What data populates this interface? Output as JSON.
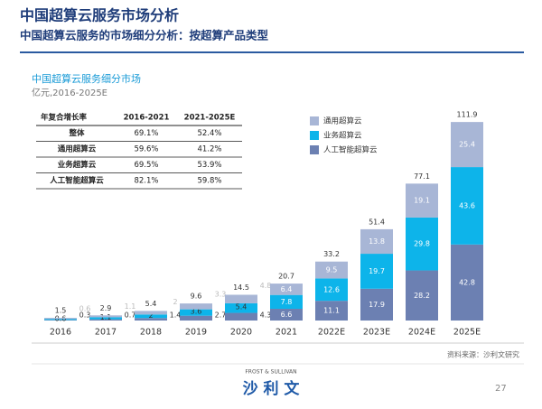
{
  "header": {
    "title": "中国超算云服务市场分析",
    "subtitle": "中国超算云服务的市场细分分析：按超算产品类型"
  },
  "table": {
    "header": [
      "年复合增长率",
      "2016-2021",
      "2021-2025E"
    ],
    "rows": [
      [
        "整体",
        "69.1%",
        "52.4%"
      ],
      [
        "通用超算云",
        "59.6%",
        "41.2%"
      ],
      [
        "业务超算云",
        "69.5%",
        "53.9%"
      ],
      [
        "人工智能超算云",
        "82.1%",
        "59.8%"
      ]
    ]
  },
  "chart_data": {
    "type": "stacked_bar",
    "title": "中国超算云服务细分市场",
    "subtitle": "亿元,2016-2025E",
    "categories": [
      "2016",
      "2017",
      "2018",
      "2019",
      "2020",
      "2021",
      "2022E",
      "2023E",
      "2024E",
      "2025E"
    ],
    "series": [
      {
        "name": "人工智能超算云",
        "color": "#6c80b2",
        "values": [
          0.3,
          0.7,
          1.4,
          2.7,
          4.3,
          6.6,
          11.1,
          17.9,
          28.2,
          42.8
        ]
      },
      {
        "name": "业务超算云",
        "color": "#0db4ea",
        "values": [
          0.6,
          1.1,
          2.0,
          3.6,
          5.4,
          7.8,
          12.6,
          19.7,
          29.8,
          43.6
        ]
      },
      {
        "name": "通用超算云",
        "color": "#a8b6d6",
        "values": [
          0.6,
          1.1,
          2.0,
          3.3,
          4.8,
          6.4,
          9.5,
          13.8,
          19.1,
          25.4
        ]
      }
    ],
    "totals": [
      1.5,
      2.9,
      5.4,
      9.6,
      14.5,
      20.7,
      33.2,
      51.4,
      77.1,
      111.9
    ],
    "ylim": [
      0,
      120
    ]
  },
  "footer": {
    "source": "资料来源：沙利文研究",
    "brand_en": "FROST & SULLIVAN",
    "brand_cn": "沙 利 文",
    "page": "27"
  }
}
